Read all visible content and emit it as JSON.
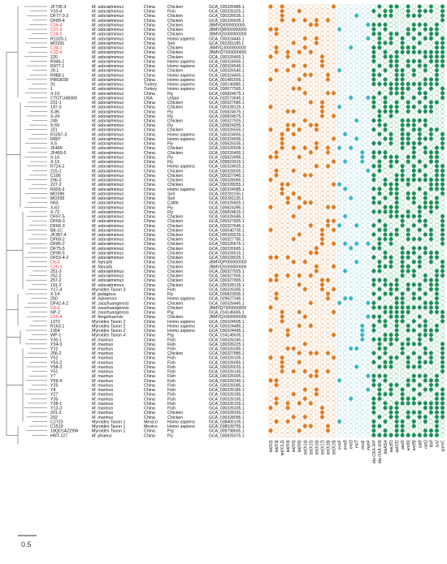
{
  "figure": {
    "scale_bar_label": "0.5",
    "colors": {
      "orange_filled": "#e07b1f",
      "orange_empty": "#f0b07a",
      "teal_filled": "#3bb6c6",
      "teal_empty": "#9fd8e0",
      "green_filled": "#1e8f5a",
      "green_empty": "#7cc49f",
      "highlight_text": "#e5262b",
      "tree_line": "#555555"
    },
    "gene_labels": [
      "tet(X2)",
      "tet(X3)",
      "tet(X3.2)",
      "tet(X4)",
      "tet(X5)",
      "tet(X6)",
      "tet(X14)",
      "tet(X15)",
      "tet(X16)",
      "tet(X17)",
      "tet(X18)",
      "tet(X19)",
      "ermF",
      "ermB",
      "ereD",
      "estT",
      "msrE",
      "mphF",
      "bla OXA-347",
      "bla OXA-209",
      "blaRSA",
      "aac(6')",
      "aph(3')",
      "aadS",
      "ant(6)",
      "ant(9)",
      "catB",
      "catQ",
      "floR",
      "sul2",
      "qnrVC"
    ],
    "strains": [
      {
        "id": "JF795-3",
        "species": "M. odoratimimus",
        "country": "China",
        "source": "Chicken",
        "acc": "GCA_030326485.1",
        "highlight": false
      },
      {
        "id": "Y10-4",
        "species": "M. odoratimimus",
        "country": "China",
        "source": "Fish",
        "acc": "GCA_030326325.1",
        "highlight": false
      },
      {
        "id": "DF77-3-2",
        "species": "M. odoratimimus",
        "country": "China",
        "source": "Chicken",
        "acc": "GCA_030326635.1",
        "highlight": false
      },
      {
        "id": "DF89-4",
        "species": "M. odoratimimus",
        "country": "China",
        "source": "Chicken",
        "acc": "GCA_030326605.1",
        "highlight": false
      },
      {
        "id": "C26-4",
        "species": "M. odoratimimus",
        "country": "China",
        "source": "Chicken",
        "acc": "JBMVQI000000000",
        "highlight": true
      },
      {
        "id": "C21-3",
        "species": "M. odoratimimus",
        "country": "China",
        "source": "Chicken",
        "acc": "JBMVQR000000000",
        "highlight": true
      },
      {
        "id": "C18-2",
        "species": "M. odoratimimus",
        "country": "China",
        "source": "Chicken",
        "acc": "JBMVQS000000000",
        "highlight": true
      },
      {
        "id": "R1320-1",
        "species": "M. odoratimimus",
        "country": "China",
        "source": "Homo sapiens",
        "acc": "GCA_030324445.1",
        "highlight": false
      },
      {
        "id": "MO291",
        "species": "M. odoratimimus",
        "country": "China",
        "source": "Soil",
        "acc": "GCA_002281185.1",
        "highlight": false
      },
      {
        "id": "C34-1",
        "species": "M. odoratimimus",
        "country": "China",
        "source": "Chicken",
        "acc": "JBMVQJ000000000",
        "highlight": true
      },
      {
        "id": "C22-4",
        "species": "M. odoratimimus",
        "country": "China",
        "source": "Chicken",
        "acc": "JBMVQT000000000",
        "highlight": true
      },
      {
        "id": "220",
        "species": "M. odoratimimus",
        "country": "China",
        "source": "Chicken",
        "acc": "GCA_030326465.1",
        "highlight": false
      },
      {
        "id": "R946-1",
        "species": "M. odoratimimus",
        "country": "China",
        "source": "Homo sapiens",
        "acc": "GCA_030324565.1",
        "highlight": false
      },
      {
        "id": "R977-1",
        "species": "M. odoratimimus",
        "country": "China",
        "source": "Homo sapiens",
        "acc": "GCA_030324545.1",
        "highlight": false
      },
      {
        "id": "J9-1",
        "species": "M. odoratimimus",
        "country": "China",
        "source": "Chicken",
        "acc": "GCA_030326545.1",
        "highlight": false
      },
      {
        "id": "R988-1",
        "species": "M. odoratimimus",
        "country": "China",
        "source": "Homo sapiens",
        "acc": "GCA_030324455.1",
        "highlight": false
      },
      {
        "id": "PR63039",
        "species": "M. odoratimimus",
        "country": "China",
        "source": "Homo sapiens",
        "acc": "GCA_001481655.1",
        "highlight": false
      },
      {
        "id": "31",
        "species": "M. odoratimimus",
        "country": "Turkey",
        "source": "Homo sapiens",
        "acc": "GCA_030146885.1",
        "highlight": false
      },
      {
        "id": "1",
        "species": "M. odoratimimus",
        "country": "Turkey",
        "source": "Homo sapiens",
        "acc": "GCA_030077565.1",
        "highlight": false
      },
      {
        "id": "X-19",
        "species": "M. odoratimimus",
        "country": "China",
        "source": "Fly",
        "acc": "GCA_035824675.1",
        "highlight": false
      },
      {
        "id": "CTOTU48300",
        "species": "M. odoratimimus",
        "country": "USA",
        "source": "Urban",
        "acc": "GCA_032073645.1",
        "highlight": false
      },
      {
        "id": "231-1",
        "species": "M. odoratimimus",
        "country": "China",
        "source": "Chicken",
        "acc": "GCA_030327685.1",
        "highlight": false
      },
      {
        "id": "197-3",
        "species": "M. odoratimimus",
        "country": "China",
        "source": "Chicken",
        "acc": "GCA_030328125.1",
        "highlight": false
      },
      {
        "id": "X-85",
        "species": "M. odoratimimus",
        "country": "China",
        "source": "Fly",
        "acc": "GCA_035824575.1",
        "highlight": false
      },
      {
        "id": "X-24",
        "species": "M. odoratimimus",
        "country": "China",
        "source": "Fly",
        "acc": "GCA_035824575.1",
        "highlight": false
      },
      {
        "id": "249",
        "species": "M. odoratimimus",
        "country": "China",
        "source": "Chicken",
        "acc": "GCA_030327925.1",
        "highlight": false
      },
      {
        "id": "X-59",
        "species": "M. odoratimimus",
        "country": "China",
        "source": "Fly",
        "acc": "GCA_035824255.1",
        "highlight": false
      },
      {
        "id": "J21",
        "species": "M. odoratimimus",
        "country": "China",
        "source": "Chicken",
        "acc": "GCA_030326555.1",
        "highlight": false
      },
      {
        "id": "R1057-3",
        "species": "M. odoratimimus",
        "country": "China",
        "source": "Homo sapiens",
        "acc": "GCA_030324655.1",
        "highlight": false
      },
      {
        "id": "R897",
        "species": "M. odoratimimus",
        "country": "China",
        "source": "Homo sapiens",
        "acc": "GCA_030324595.1",
        "highlight": false
      },
      {
        "id": "X-5",
        "species": "M. odoratimimus",
        "country": "China",
        "source": "Fly",
        "acc": "GCA_035825035.1",
        "highlight": false
      },
      {
        "id": "JF465",
        "species": "M. odoratimimus",
        "country": "China",
        "source": "Chicken",
        "acc": "GCA_030326505.1",
        "highlight": false
      },
      {
        "id": "JF469-5",
        "species": "M. odoratimimus",
        "country": "China",
        "source": "Chicken",
        "acc": "GCA_030326455.1",
        "highlight": false
      },
      {
        "id": "X-16",
        "species": "M. odoratimimus",
        "country": "China",
        "source": "Fly",
        "acc": "GCA_035823995.1",
        "highlight": false
      },
      {
        "id": "X-15",
        "species": "M. odoratimimus",
        "country": "China",
        "source": "Fly",
        "acc": "GCA_035823915.1",
        "highlight": false
      },
      {
        "id": "R724-2",
        "species": "M. odoratimimus",
        "country": "China",
        "source": "Homo sapiens",
        "acc": "GCA_030324625.1",
        "highlight": false
      },
      {
        "id": "215-1",
        "species": "M. odoratimimus",
        "country": "China",
        "source": "Chicken",
        "acc": "GCA_030328035.1",
        "highlight": false
      },
      {
        "id": "C195",
        "species": "M. odoratimimus",
        "country": "China",
        "source": "Chicken",
        "acc": "GCA_030327945.1",
        "highlight": false
      },
      {
        "id": "206-3",
        "species": "M. odoratimimus",
        "country": "China",
        "source": "Chicken",
        "acc": "GCA_030328065.1",
        "highlight": false
      },
      {
        "id": "227-2",
        "species": "M. odoratimimus",
        "country": "China",
        "source": "Chicken",
        "acc": "GCA_030328055.1",
        "highlight": false
      },
      {
        "id": "R933-3",
        "species": "M. odoratimimus",
        "country": "China",
        "source": "Homo sapiens",
        "acc": "GCA_030324585.1",
        "highlight": false
      },
      {
        "id": "MO286",
        "species": "M. odoratimimus",
        "country": "China",
        "source": "Soil",
        "acc": "GCA_002281155.1",
        "highlight": false
      },
      {
        "id": "MO295",
        "species": "M. odoratimimus",
        "country": "China",
        "source": "Soil",
        "acc": "GCA_002281125.1",
        "highlight": false
      },
      {
        "id": "N63",
        "species": "M. odoratimimus",
        "country": "China",
        "source": "Cattle",
        "acc": "GCA_030325825.1",
        "highlight": false
      },
      {
        "id": "X-62",
        "species": "M. odoratimimus",
        "country": "China",
        "source": "Fly",
        "acc": "GCA_035824395.1",
        "highlight": false
      },
      {
        "id": "X-72",
        "species": "M. odoratimimus",
        "country": "China",
        "source": "Fly",
        "acc": "GCA_035824615.1",
        "highlight": false
      },
      {
        "id": "DF97-5",
        "species": "M. odoratimimus",
        "country": "China",
        "source": "Chicken",
        "acc": "GCA_030326585.1",
        "highlight": false
      },
      {
        "id": "DF68-3",
        "species": "M. odoratimimus",
        "country": "China",
        "source": "Chicken",
        "acc": "GCA_030327825.1",
        "highlight": false
      },
      {
        "id": "DF66-3",
        "species": "M. odoratimimus",
        "country": "China",
        "source": "Chicken",
        "acc": "GCA_030327645.1",
        "highlight": false
      },
      {
        "id": "B8-1C",
        "species": "M. odoratimimus",
        "country": "China",
        "source": "Chicken",
        "acc": "GCA_030540735.1",
        "highlight": false
      },
      {
        "id": "JF387-4",
        "species": "M. odoratimimus",
        "country": "China",
        "source": "Chicken",
        "acc": "GCA_030326515.1",
        "highlight": false
      },
      {
        "id": "DF69-2",
        "species": "M. odoratimimus",
        "country": "China",
        "source": "Chicken",
        "acc": "GCA_030327785.1",
        "highlight": false
      },
      {
        "id": "DF85-2",
        "species": "M. odoratimimus",
        "country": "China",
        "source": "Chicken",
        "acc": "GCA_030326675.1",
        "highlight": false
      },
      {
        "id": "DF75-5",
        "species": "M. odoratimimus",
        "country": "China",
        "source": "Chicken",
        "acc": "GCA_030326665.1",
        "highlight": false
      },
      {
        "id": "DF96-5",
        "species": "M. odoratimimus",
        "country": "China",
        "source": "Chicken",
        "acc": "GCA_030326615.1",
        "highlight": false
      },
      {
        "id": "DF53-4-2",
        "species": "M. odoratimimus",
        "country": "China",
        "source": "Chicken",
        "acc": "GCA_030328025.1",
        "highlight": false
      },
      {
        "id": "C6-3",
        "species": "M. faecalis",
        "country": "China",
        "source": "Chicken",
        "acc": "JBMVQP000000000",
        "highlight": true
      },
      {
        "id": "C20-1",
        "species": "M. faecalis",
        "country": "China",
        "source": "Chicken",
        "acc": "JBMVQS000000000",
        "highlight": true
      },
      {
        "id": "251-3",
        "species": "M. odoratimimus",
        "country": "China",
        "source": "Chicken",
        "acc": "GCA_030327925.1",
        "highlight": false
      },
      {
        "id": "252-2",
        "species": "M. odoratimimus",
        "country": "China",
        "source": "Chicken",
        "acc": "GCA_030327905.1",
        "highlight": false
      },
      {
        "id": "257-2",
        "species": "M. odoratimimus",
        "country": "China",
        "source": "Chicken",
        "acc": "GCA_030327865.1",
        "highlight": false
      },
      {
        "id": "191-2",
        "species": "M. odoratimimus",
        "country": "China",
        "source": "Chicken",
        "acc": "GCA_030328135.1",
        "highlight": false
      },
      {
        "id": "Y17-4",
        "species": "Myroides Taxon 3",
        "country": "China",
        "source": "Fish",
        "acc": "GCA_030326305.1",
        "highlight": false
      },
      {
        "id": "X-14",
        "species": "M. pelagicus",
        "country": "China",
        "source": "Fly",
        "acc": "GCA_035823935.1",
        "highlight": false
      },
      {
        "id": "250",
        "species": "M. injenensis",
        "country": "China",
        "source": "Homo sapiens",
        "acc": "GCA_029627345.1",
        "highlight": false
      },
      {
        "id": "DF42-4-2",
        "species": "M. zaozhuangensis",
        "country": "China",
        "source": "Chicken",
        "acc": "GCA_030326445.1",
        "highlight": false
      },
      {
        "id": "C8-3",
        "species": "M. zaozhuangensis",
        "country": "China",
        "source": "Chicken",
        "acc": "JBMVQT000000000",
        "highlight": true
      },
      {
        "id": "NP-2",
        "species": "M. zaozhuangensis",
        "country": "China",
        "source": "Pig",
        "acc": "GCA_014145665.1",
        "highlight": false
      },
      {
        "id": "C15-4",
        "species": "M. fengzhuensis",
        "country": "China",
        "source": "Chicken",
        "acc": "JBMVQX000000000",
        "highlight": true
      },
      {
        "id": "1372",
        "species": "Myroides Taxon 2",
        "country": "China",
        "source": "Homo sapiens",
        "acc": "GCA_030324505.1",
        "highlight": false
      },
      {
        "id": "R163-1",
        "species": "Myroides Taxon 2",
        "country": "China",
        "source": "Homo sapiens",
        "acc": "GCA_030324485.1",
        "highlight": false
      },
      {
        "id": "1354",
        "species": "Myroides Taxon 2",
        "country": "China",
        "source": "Homo sapiens",
        "acc": "GCA_030324495.1",
        "highlight": false
      },
      {
        "id": "WP-1",
        "species": "Myroides Taxon 4",
        "country": "China",
        "source": "Pig",
        "acc": "GCA_014145635.1",
        "highlight": false
      },
      {
        "id": "Y30-1",
        "species": "M. marinus",
        "country": "China",
        "source": "Fish",
        "acc": "GCA_030326245.1",
        "highlight": false
      },
      {
        "id": "Y34-3",
        "species": "M. marinus",
        "country": "China",
        "source": "Fish",
        "acc": "GCA_030326225.1",
        "highlight": false
      },
      {
        "id": "Y22",
        "species": "M. marinus",
        "country": "China",
        "source": "Fish",
        "acc": "GCA_030326285.1",
        "highlight": false
      },
      {
        "id": "256-2",
        "species": "M. marinus",
        "country": "China",
        "source": "Chicken",
        "acc": "GCA_030327885.1",
        "highlight": false
      },
      {
        "id": "Y52",
        "species": "M. marinus",
        "country": "China",
        "source": "Fish",
        "acc": "GCA_030326105.1",
        "highlight": false
      },
      {
        "id": "Y53-2",
        "species": "M. marinus",
        "country": "China",
        "source": "Fish",
        "acc": "GCA_030326055.1",
        "highlight": false
      },
      {
        "id": "Y58-3",
        "species": "M. marinus",
        "country": "China",
        "source": "Fish",
        "acc": "GCA_030326015.1",
        "highlight": false
      },
      {
        "id": "Y51",
        "species": "M. marinus",
        "country": "China",
        "source": "Fish",
        "acc": "GCA_030326145.1",
        "highlight": false
      },
      {
        "id": "Y7",
        "species": "M. marinus",
        "country": "China",
        "source": "Fish",
        "acc": "GCA_030326005.1",
        "highlight": false
      },
      {
        "id": "Y59-4",
        "species": "M. marinus",
        "country": "China",
        "source": "Fish",
        "acc": "GCA_030326245.1",
        "highlight": false
      },
      {
        "id": "Y25",
        "species": "M. marinus",
        "country": "China",
        "source": "Fish",
        "acc": "GCA_030326085.1",
        "highlight": false
      },
      {
        "id": "Y4",
        "species": "M. marinus",
        "country": "China",
        "source": "Fish",
        "acc": "GCA_030326185.1",
        "highlight": false
      },
      {
        "id": "Y27",
        "species": "M. marinus",
        "country": "China",
        "source": "Fish",
        "acc": "GCA_030326265.1",
        "highlight": false
      },
      {
        "id": "Y35",
        "species": "M. marinus",
        "country": "China",
        "source": "Fish",
        "acc": "GCA_030326165.1",
        "highlight": false
      },
      {
        "id": "Y38-1",
        "species": "M. marinus",
        "country": "China",
        "source": "Fish",
        "acc": "GCA_030326155.1",
        "highlight": false
      },
      {
        "id": "Y12-3",
        "species": "M. marinus",
        "country": "China",
        "source": "Fish",
        "acc": "GCA_030326335.1",
        "highlight": false
      },
      {
        "id": "201-2",
        "species": "M. marinus",
        "country": "China",
        "source": "Chicken",
        "acc": "GCA_030328165.1",
        "highlight": false
      },
      {
        "id": "202",
        "species": "M. marinus",
        "country": "China",
        "source": "Chicken",
        "acc": "GCA_030328095.1",
        "highlight": false
      },
      {
        "id": "C2723",
        "species": "Myroides Taxon 1",
        "country": "Mexico",
        "source": "Homo sapiens",
        "acc": "GCA_038405105.1",
        "highlight": false
      },
      {
        "id": "C1519",
        "species": "Myroides Taxon 1",
        "country": "Mexico",
        "source": "Homo sapiens",
        "acc": "GCA_038039755.1",
        "highlight": false
      },
      {
        "id": "18QD1AZ29W",
        "species": "Myroides Taxon 1",
        "country": "China",
        "source": "Pig",
        "acc": "GCA_009798605.1",
        "highlight": false
      },
      {
        "id": "HNT-127",
        "species": "M. phaeus",
        "country": "China",
        "source": "Fly",
        "acc": "GCA_035825075.1",
        "highlight": false
      }
    ]
  }
}
